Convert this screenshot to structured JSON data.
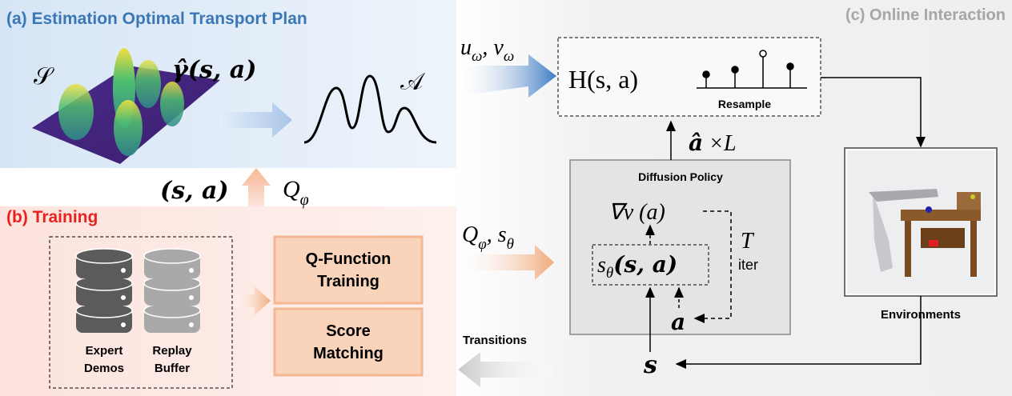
{
  "panel_a": {
    "title": "(a) Estimation  Optimal  Transport Plan",
    "state_space": "𝒮",
    "plan": "γ̂(s, a)",
    "action_space": "𝒜"
  },
  "edges": {
    "a_to_c": [
      "u",
      "ω",
      ", v",
      "ω"
    ],
    "b_to_a_pair": "(s, a)",
    "b_to_a_q": [
      "Q",
      "φ"
    ],
    "b_to_c": [
      "Q",
      "φ",
      ", s",
      "θ"
    ],
    "c_to_b": "Transitions"
  },
  "panel_b": {
    "title": "(b) Training",
    "buffers": [
      [
        "Expert",
        "Demos"
      ],
      [
        "Replay",
        "Buffer"
      ]
    ],
    "modules": [
      [
        "Q-Function",
        "Training"
      ],
      [
        "Score",
        "Matching"
      ]
    ]
  },
  "panel_c": {
    "title": "(c) Online Interaction",
    "selector": "H(s, a)",
    "resample": "Resample",
    "samples": [
      "â",
      " ×L"
    ],
    "policy": {
      "title": "Diffusion Policy",
      "gradient": "∇v (a)",
      "score": [
        "s",
        "θ",
        "(s, a)"
      ],
      "iterations": [
        "T",
        "iter"
      ],
      "action": "a"
    },
    "environment": "Environments",
    "state": "s"
  }
}
